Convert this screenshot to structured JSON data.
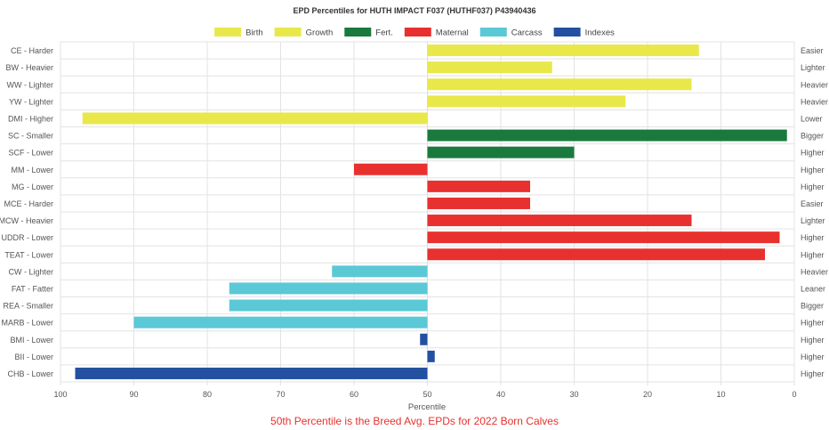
{
  "chart_data": {
    "type": "bar",
    "orientation": "horizontal",
    "title": "EPD Percentiles for HUTH IMPACT F037 (HUTHF037) P43940436",
    "xlabel": "Percentile",
    "footer": "50th Percentile is the Breed Avg. EPDs for 2022 Born Calves",
    "xlim": [
      100,
      0
    ],
    "x_reversed": true,
    "baseline": 50,
    "x_ticks": [
      100,
      90,
      80,
      70,
      60,
      50,
      40,
      30,
      20,
      10,
      0
    ],
    "grid": true,
    "legend_position": "top-center",
    "legend": [
      {
        "name": "Birth",
        "color": "#e8e84a"
      },
      {
        "name": "Growth",
        "color": "#e8e84a"
      },
      {
        "name": "Fert.",
        "color": "#1a7a3e"
      },
      {
        "name": "Maternal",
        "color": "#e8302f"
      },
      {
        "name": "Carcass",
        "color": "#5bc8d6"
      },
      {
        "name": "Indexes",
        "color": "#2350a0"
      }
    ],
    "bars": [
      {
        "label": "CE - Harder",
        "right_label": "Easier",
        "value": 13,
        "color": "#e8e84a"
      },
      {
        "label": "BW - Heavier",
        "right_label": "Lighter",
        "value": 33,
        "color": "#e8e84a"
      },
      {
        "label": "WW - Lighter",
        "right_label": "Heavier",
        "value": 14,
        "color": "#e8e84a"
      },
      {
        "label": "YW - Lighter",
        "right_label": "Heavier",
        "value": 23,
        "color": "#e8e84a"
      },
      {
        "label": "DMI - Higher",
        "right_label": "Lower",
        "value": 97,
        "color": "#e8e84a"
      },
      {
        "label": "SC - Smaller",
        "right_label": "Bigger",
        "value": 1,
        "color": "#1a7a3e"
      },
      {
        "label": "SCF - Lower",
        "right_label": "Higher",
        "value": 30,
        "color": "#1a7a3e"
      },
      {
        "label": "MM - Lower",
        "right_label": "Higher",
        "value": 60,
        "color": "#e8302f"
      },
      {
        "label": "MG - Lower",
        "right_label": "Higher",
        "value": 36,
        "color": "#e8302f"
      },
      {
        "label": "MCE - Harder",
        "right_label": "Easier",
        "value": 36,
        "color": "#e8302f"
      },
      {
        "label": "MCW - Heavier",
        "right_label": "Lighter",
        "value": 14,
        "color": "#e8302f"
      },
      {
        "label": "UDDR - Lower",
        "right_label": "Higher",
        "value": 2,
        "color": "#e8302f"
      },
      {
        "label": "TEAT - Lower",
        "right_label": "Higher",
        "value": 4,
        "color": "#e8302f"
      },
      {
        "label": "CW - Lighter",
        "right_label": "Heavier",
        "value": 63,
        "color": "#5bc8d6"
      },
      {
        "label": "FAT - Fatter",
        "right_label": "Leaner",
        "value": 77,
        "color": "#5bc8d6"
      },
      {
        "label": "REA - Smaller",
        "right_label": "Bigger",
        "value": 77,
        "color": "#5bc8d6"
      },
      {
        "label": "MARB - Lower",
        "right_label": "Higher",
        "value": 90,
        "color": "#5bc8d6"
      },
      {
        "label": "BMI - Lower",
        "right_label": "Higher",
        "value": 51,
        "color": "#2350a0"
      },
      {
        "label": "BII - Lower",
        "right_label": "Higher",
        "value": 49,
        "color": "#2350a0"
      },
      {
        "label": "CHB - Lower",
        "right_label": "Higher",
        "value": 98,
        "color": "#2350a0"
      }
    ]
  }
}
